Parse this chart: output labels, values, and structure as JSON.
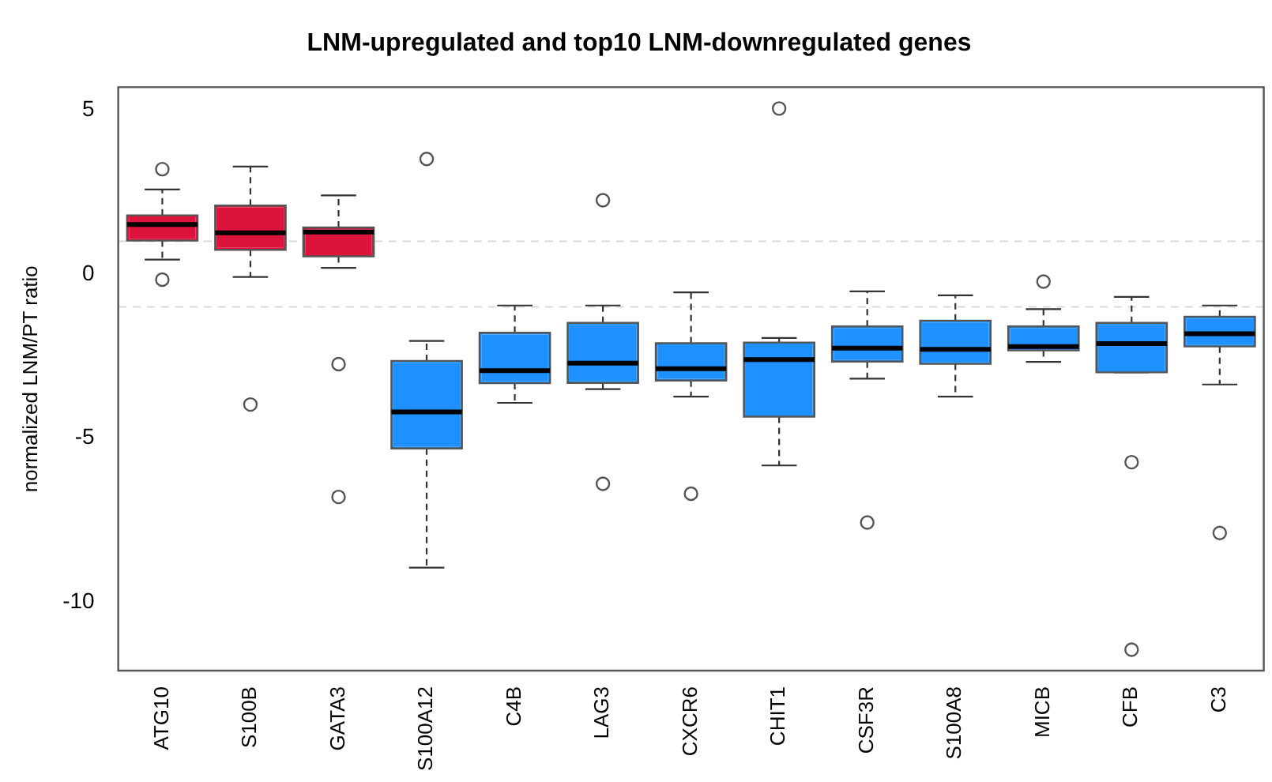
{
  "chart_data": {
    "type": "box",
    "title": "LNM-upregulated and top10 LNM-downregulated genes",
    "ylabel": "normalized LNM/PT ratio",
    "categories": [
      "ATG10",
      "S100B",
      "GATA3",
      "S100A12",
      "C4B",
      "LAG3",
      "CXCR6",
      "CHIT1",
      "CSF3R",
      "S100A8",
      "MICB",
      "CFB",
      "C3"
    ],
    "colors": [
      "#dc143c",
      "#dc143c",
      "#dc143c",
      "#1e90ff",
      "#1e90ff",
      "#1e90ff",
      "#1e90ff",
      "#1e90ff",
      "#1e90ff",
      "#1e90ff",
      "#1e90ff",
      "#1e90ff",
      "#1e90ff"
    ],
    "boxes": [
      {
        "low": 0.44,
        "q1": 1.02,
        "median": 1.51,
        "q3": 1.79,
        "high": 2.58,
        "outliers": [
          3.2,
          -0.17
        ]
      },
      {
        "low": -0.09,
        "q1": 0.74,
        "median": 1.26,
        "q3": 2.09,
        "high": 3.28,
        "outliers": [
          -3.98
        ]
      },
      {
        "low": 0.19,
        "q1": 0.54,
        "median": 1.28,
        "q3": 1.42,
        "high": 2.4,
        "outliers": [
          -2.75,
          -6.8
        ]
      },
      {
        "low": -8.96,
        "q1": -5.32,
        "median": -4.21,
        "q3": -2.65,
        "high": -2.04,
        "outliers": [
          3.51
        ]
      },
      {
        "low": -3.93,
        "q1": -3.33,
        "median": -2.95,
        "q3": -1.79,
        "high": -0.96
      },
      {
        "low": -3.51,
        "q1": -3.32,
        "median": -2.72,
        "q3": -1.49,
        "high": -0.96,
        "outliers": [
          2.25,
          -6.4
        ]
      },
      {
        "low": -3.74,
        "q1": -3.25,
        "median": -2.89,
        "q3": -2.11,
        "high": -0.56,
        "outliers": [
          -6.7
        ]
      },
      {
        "low": -5.84,
        "q1": -4.35,
        "median": -2.61,
        "q3": -2.09,
        "high": -1.95,
        "outliers": [
          5.05
        ]
      },
      {
        "low": -3.19,
        "q1": -2.67,
        "median": -2.26,
        "q3": -1.6,
        "high": -0.53,
        "outliers": [
          -7.58
        ]
      },
      {
        "low": -3.74,
        "q1": -2.74,
        "median": -2.3,
        "q3": -1.42,
        "high": -0.65
      },
      {
        "low": -2.68,
        "q1": -2.33,
        "median": -2.21,
        "q3": -1.6,
        "high": -1.07,
        "outliers": [
          -0.23
        ]
      },
      {
        "low": -3.0,
        "q1": -3.0,
        "median": -2.12,
        "q3": -1.49,
        "high": -0.7,
        "outliers": [
          -5.74,
          -11.46
        ]
      },
      {
        "low": -3.37,
        "q1": -2.21,
        "median": -1.82,
        "q3": -1.3,
        "high": -0.96,
        "outliers": [
          -7.9
        ]
      }
    ],
    "ylim": [
      -12.1,
      5.7
    ],
    "yticks": [
      -10,
      -5,
      0,
      5
    ],
    "grid": false,
    "ref_lines": [
      {
        "axis": "y",
        "value": 1,
        "color": "#d9d9d9",
        "line_style": "dashed"
      },
      {
        "axis": "y",
        "value": -1,
        "color": "#d9d9d9",
        "line_style": "dashed"
      }
    ]
  }
}
